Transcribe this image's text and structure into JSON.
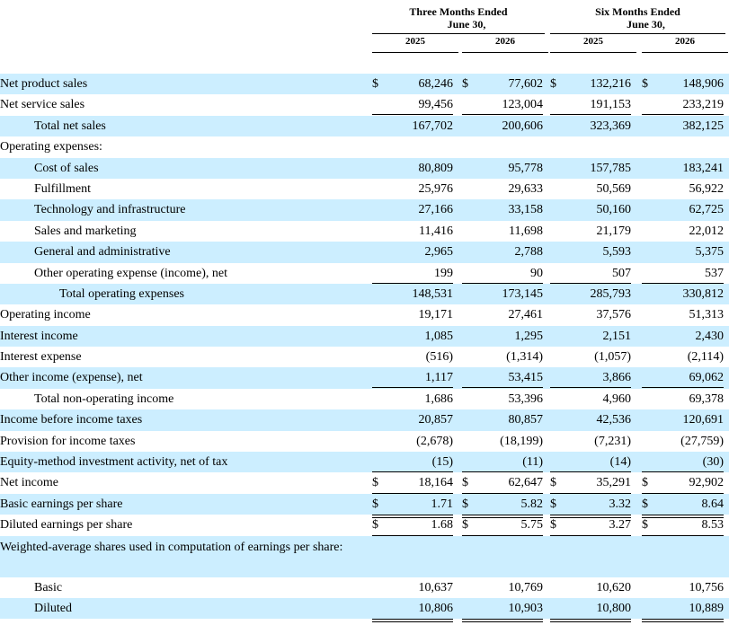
{
  "header": {
    "group1": [
      "Three Months Ended",
      "June 30,"
    ],
    "group2": [
      "Six Months Ended",
      "June 30,"
    ],
    "years": [
      "2025",
      "2026",
      "2025",
      "2026"
    ]
  },
  "rows": [
    {
      "label": "Net product sales",
      "indent": 0,
      "shade": true,
      "values": [
        "68,246",
        "77,602",
        "132,216",
        "148,906"
      ],
      "dollar": true
    },
    {
      "label": "Net service sales",
      "indent": 0,
      "shade": false,
      "values": [
        "99,456",
        "123,004",
        "191,153",
        "233,219"
      ],
      "line": "single"
    },
    {
      "label": "Total net sales",
      "indent": 1,
      "shade": true,
      "values": [
        "167,702",
        "200,606",
        "323,369",
        "382,125"
      ]
    },
    {
      "label": "Operating expenses:",
      "indent": 0,
      "shade": false,
      "values": [
        "",
        "",
        "",
        ""
      ]
    },
    {
      "label": "Cost of sales",
      "indent": 1,
      "shade": true,
      "values": [
        "80,809",
        "95,778",
        "157,785",
        "183,241"
      ]
    },
    {
      "label": "Fulfillment",
      "indent": 1,
      "shade": false,
      "values": [
        "25,976",
        "29,633",
        "50,569",
        "56,922"
      ]
    },
    {
      "label": "Technology and infrastructure",
      "indent": 1,
      "shade": true,
      "values": [
        "27,166",
        "33,158",
        "50,160",
        "62,725"
      ]
    },
    {
      "label": "Sales and marketing",
      "indent": 1,
      "shade": false,
      "values": [
        "11,416",
        "11,698",
        "21,179",
        "22,012"
      ]
    },
    {
      "label": "General and administrative",
      "indent": 1,
      "shade": true,
      "values": [
        "2,965",
        "2,788",
        "5,593",
        "5,375"
      ]
    },
    {
      "label": "Other operating expense (income), net",
      "indent": 1,
      "shade": false,
      "values": [
        "199",
        "90",
        "507",
        "537"
      ],
      "line": "single"
    },
    {
      "label": "Total operating expenses",
      "indent": 2,
      "shade": true,
      "values": [
        "148,531",
        "173,145",
        "285,793",
        "330,812"
      ]
    },
    {
      "label": "Operating income",
      "indent": 0,
      "shade": false,
      "values": [
        "19,171",
        "27,461",
        "37,576",
        "51,313"
      ]
    },
    {
      "label": "Interest income",
      "indent": 0,
      "shade": true,
      "values": [
        "1,085",
        "1,295",
        "2,151",
        "2,430"
      ]
    },
    {
      "label": "Interest expense",
      "indent": 0,
      "shade": false,
      "values": [
        "(516)",
        "(1,314)",
        "(1,057)",
        "(2,114)"
      ]
    },
    {
      "label": "Other income (expense), net",
      "indent": 0,
      "shade": true,
      "values": [
        "1,117",
        "53,415",
        "3,866",
        "69,062"
      ],
      "line": "single"
    },
    {
      "label": "Total non-operating income",
      "indent": 1,
      "shade": false,
      "values": [
        "1,686",
        "53,396",
        "4,960",
        "69,378"
      ]
    },
    {
      "label": "Income before income taxes",
      "indent": 0,
      "shade": true,
      "values": [
        "20,857",
        "80,857",
        "42,536",
        "120,691"
      ]
    },
    {
      "label": "Provision for income taxes",
      "indent": 0,
      "shade": false,
      "values": [
        "(2,678)",
        "(18,199)",
        "(7,231)",
        "(27,759)"
      ]
    },
    {
      "label": "Equity-method investment activity, net of tax",
      "indent": 0,
      "shade": true,
      "values": [
        "(15)",
        "(11)",
        "(14)",
        "(30)"
      ],
      "line": "single"
    },
    {
      "label": "Net income",
      "indent": 0,
      "shade": false,
      "values": [
        "18,164",
        "62,647",
        "35,291",
        "92,902"
      ],
      "dollar": true,
      "line": "double"
    },
    {
      "label": "Basic earnings per share",
      "indent": 0,
      "shade": true,
      "values": [
        "1.71",
        "5.82",
        "3.32",
        "8.64"
      ],
      "dollar": true,
      "line": "double"
    },
    {
      "label": "Diluted earnings per share",
      "indent": 0,
      "shade": false,
      "values": [
        "1.68",
        "5.75",
        "3.27",
        "8.53"
      ],
      "dollar": true,
      "line": "double"
    },
    {
      "label": "Weighted-average shares used in computation of earnings per share:",
      "indent": 0,
      "shade": true,
      "values": [
        "",
        "",
        "",
        ""
      ],
      "tall": true
    },
    {
      "label": "Basic",
      "indent": 1,
      "shade": false,
      "values": [
        "10,637",
        "10,769",
        "10,620",
        "10,756"
      ],
      "line": "double"
    },
    {
      "label": "Diluted",
      "indent": 1,
      "shade": true,
      "values": [
        "10,806",
        "10,903",
        "10,800",
        "10,889"
      ],
      "line": "double"
    }
  ],
  "currency_symbol": "$"
}
